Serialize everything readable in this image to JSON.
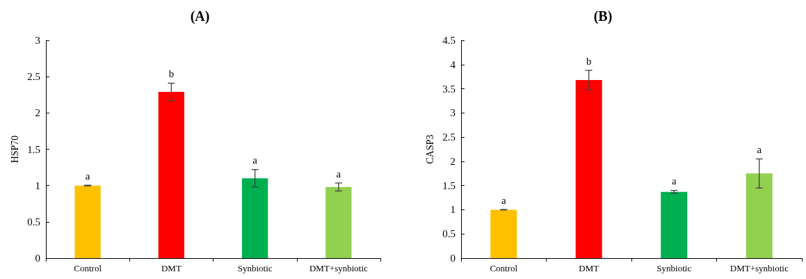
{
  "chart_data": [
    {
      "type": "bar",
      "title": "(A)",
      "ylabel": "HSP70",
      "categories": [
        "Control",
        "DMT",
        "Synbiotic",
        "DMT+synbiotic"
      ],
      "values": [
        1.0,
        2.29,
        1.1,
        0.98
      ],
      "colors": [
        "#ffc000",
        "#ff0000",
        "#00b050",
        "#92d050"
      ],
      "errors": [
        0.005,
        0.12,
        0.12,
        0.055
      ],
      "ylim": [
        0,
        3
      ],
      "yticks": [
        0,
        0.5,
        1,
        1.5,
        2,
        2.5,
        3
      ],
      "grid": false,
      "annotations": [
        {
          "text": "a",
          "x": "Control",
          "y": 1.005
        },
        {
          "text": "b",
          "x": "DMT",
          "y": 2.41
        },
        {
          "text": "a",
          "x": "Synbiotic",
          "y": 1.22
        },
        {
          "text": "a",
          "x": "DMT+synbiotic",
          "y": 1.035
        }
      ]
    },
    {
      "type": "bar",
      "title": "(B)",
      "ylabel": "CASP3",
      "categories": [
        "Control",
        "DMT",
        "Synbiotic",
        "DMT+synbiotic"
      ],
      "values": [
        1.0,
        3.68,
        1.37,
        1.75
      ],
      "colors": [
        "#ffc000",
        "#ff0000",
        "#00b050",
        "#92d050"
      ],
      "errors": [
        0.005,
        0.2,
        0.03,
        0.3
      ],
      "ylim": [
        0,
        4.5
      ],
      "yticks": [
        0,
        0.5,
        1,
        1.5,
        2,
        2.5,
        3,
        3.5,
        4,
        4.5
      ],
      "grid": false,
      "annotations": [
        {
          "text": "a",
          "x": "Control",
          "y": 1.005
        },
        {
          "text": "b",
          "x": "DMT",
          "y": 3.88
        },
        {
          "text": "a",
          "x": "Synbiotic",
          "y": 1.4
        },
        {
          "text": "a",
          "x": "DMT+synbiotic",
          "y": 2.05
        }
      ]
    }
  ]
}
